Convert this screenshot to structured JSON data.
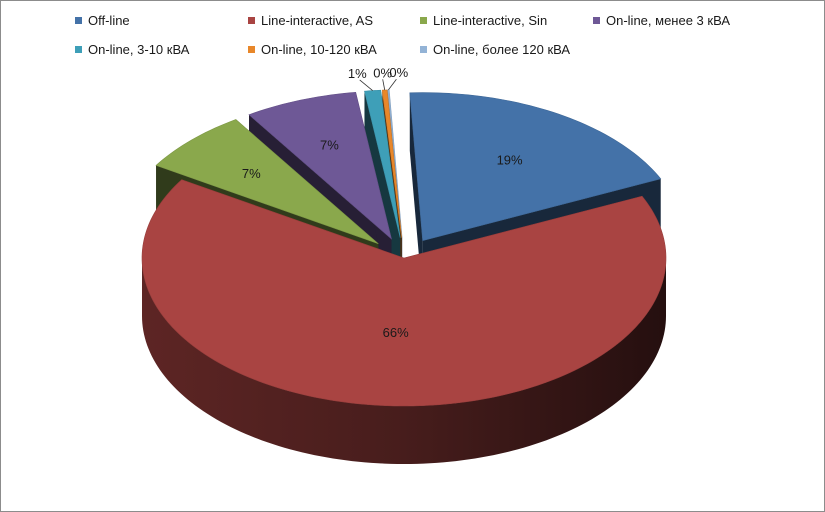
{
  "chart_data": {
    "type": "pie",
    "title": "",
    "legend_position": "top",
    "slices": [
      {
        "name": "Off-line",
        "value": 19,
        "label": "19%",
        "color": "#4472a8"
      },
      {
        "name": "Line-interactive, AS",
        "value": 66,
        "label": "66%",
        "color": "#a94442"
      },
      {
        "name": "Line-interactive, Sin",
        "value": 7,
        "label": "7%",
        "color": "#8aa84c"
      },
      {
        "name": "On-line, менее 3 кВА",
        "value": 7,
        "label": "7%",
        "color": "#6e5896"
      },
      {
        "name": "On-line, 3-10 кВА",
        "value": 1,
        "label": "1%",
        "color": "#3e9fb8"
      },
      {
        "name": "On-line, 10-120 кВА",
        "value": 0.3,
        "label": "0%",
        "color": "#e8872a"
      },
      {
        "name": "On-line, более 120 кВА",
        "value": 0.1,
        "label": "0%",
        "color": "#93b3d6"
      }
    ]
  }
}
